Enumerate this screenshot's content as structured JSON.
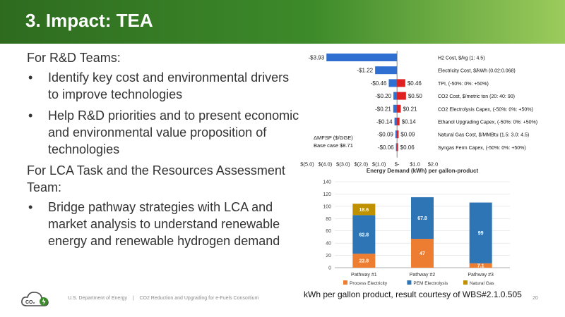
{
  "title": "3. Impact: TEA",
  "left": {
    "heading1": "For R&D Teams:",
    "bullets1": [
      "Identify key cost and environmental drivers to improve technologies",
      "Help R&D priorities and to present economic and environmental value proposition of technologies"
    ],
    "heading2": "For LCA Task and the Resources Assessment Team:",
    "bullets2": [
      "Bridge pathway strategies with LCA and market analysis to understand renewable energy and renewable hydrogen demand"
    ]
  },
  "footer": {
    "org": "U.S. Department of Energy",
    "sep": "|",
    "project": "CO2 Reduction and Upgrading for e-Fuels Consortium",
    "page": "20"
  },
  "logo": {
    "text": "CO₂"
  },
  "caption": "kWh per gallon product, result courtesy of WBS#2.1.0.505",
  "chart_data": [
    {
      "type": "bar",
      "orientation": "horizontal",
      "subtype": "tornado",
      "annotation_label": "ΔMFSP ($/GGE)",
      "base_case_label": "Base case $8.71",
      "xlim": [
        -5,
        2
      ],
      "ticks": [
        -5,
        -4,
        -3,
        -2,
        -1,
        0,
        1,
        2
      ],
      "tick_labels": [
        "$(5.0)",
        "$(4.0)",
        "$(3.0)",
        "$(2.0)",
        "$(1.0)",
        "$-",
        "$1.0",
        "$2.0"
      ],
      "colors": {
        "low": "#2f6fd1",
        "high": "#e02020"
      },
      "rows": [
        {
          "label": "H2 Cost, $/kg (1: 4.5)",
          "low": -3.93,
          "high": null,
          "low_label": "-$3.93",
          "high_label": ""
        },
        {
          "label": "Electricity Cost, $/kWh (0.02:0.068)",
          "low": -1.22,
          "high": null,
          "low_label": "-$1.22",
          "high_label": ""
        },
        {
          "label": "TPI, (-50%: 0%: +50%)",
          "low": -0.46,
          "high": 0.46,
          "low_label": "-$0.46",
          "high_label": "$0.46"
        },
        {
          "label": "CO2 Cost, $/metric ton (20: 40: 90)",
          "low": -0.2,
          "high": 0.5,
          "low_label": "-$0.20",
          "high_label": "$0.50"
        },
        {
          "label": "CO2 Electrolysis Capex, (-50%: 0%: +50%)",
          "low": -0.21,
          "high": 0.21,
          "low_label": "-$0.21",
          "high_label": "$0.21"
        },
        {
          "label": "Ethanol Upgrading Capex, (-50%: 0%: +50%)",
          "low": -0.14,
          "high": 0.14,
          "low_label": "-$0.14",
          "high_label": "$0.14"
        },
        {
          "label": "Natural Gas Cost, $/MMBtu (1.5: 3.0: 4.5)",
          "low": -0.09,
          "high": 0.09,
          "low_label": "-$0.09",
          "high_label": "$0.09"
        },
        {
          "label": "Syngas Ferm Capex, (-50%: 0%: +50%)",
          "low": -0.06,
          "high": 0.06,
          "low_label": "-$0.06",
          "high_label": "$0.06"
        }
      ]
    },
    {
      "type": "bar",
      "subtype": "stacked",
      "title": "Energy Demand (kWh) per gallon-product",
      "categories": [
        "Pathway #1",
        "Pathway #2",
        "Pathway #3"
      ],
      "ylim": [
        0,
        140
      ],
      "yticks": [
        0,
        20,
        40,
        60,
        80,
        100,
        120,
        140
      ],
      "series": [
        {
          "name": "Process Electricity",
          "color": "#ed7d31",
          "values": [
            22.8,
            47.0,
            7.1
          ]
        },
        {
          "name": "PEM Electrolysis",
          "color": "#2e75b6",
          "values": [
            62.8,
            67.8,
            99.0
          ]
        },
        {
          "name": "Natural Gas",
          "color": "#bf9000",
          "values": [
            18.6,
            null,
            null
          ]
        }
      ]
    }
  ]
}
